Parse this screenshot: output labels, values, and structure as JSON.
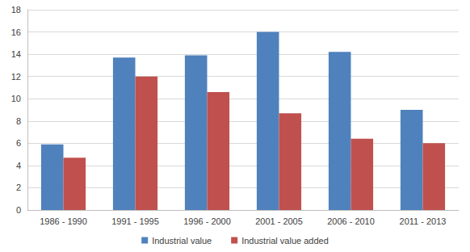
{
  "chart_data": {
    "type": "bar",
    "categories": [
      "1986 - 1990",
      "1991 - 1995",
      "1996 - 2000",
      "2001 - 2005",
      "2006 - 2010",
      "2011 - 2013"
    ],
    "series": [
      {
        "name": "Industrial value",
        "color": "#4f81bd",
        "values": [
          5.9,
          13.7,
          13.9,
          16.0,
          14.2,
          9.0
        ]
      },
      {
        "name": "Industrial value added",
        "color": "#c0504d",
        "values": [
          4.7,
          12.0,
          10.6,
          8.7,
          6.4,
          6.0
        ]
      }
    ],
    "ylim": [
      0,
      18
    ],
    "yticks": [
      0,
      2,
      4,
      6,
      8,
      10,
      12,
      14,
      16,
      18
    ],
    "grid": true,
    "legend": "bottom"
  }
}
